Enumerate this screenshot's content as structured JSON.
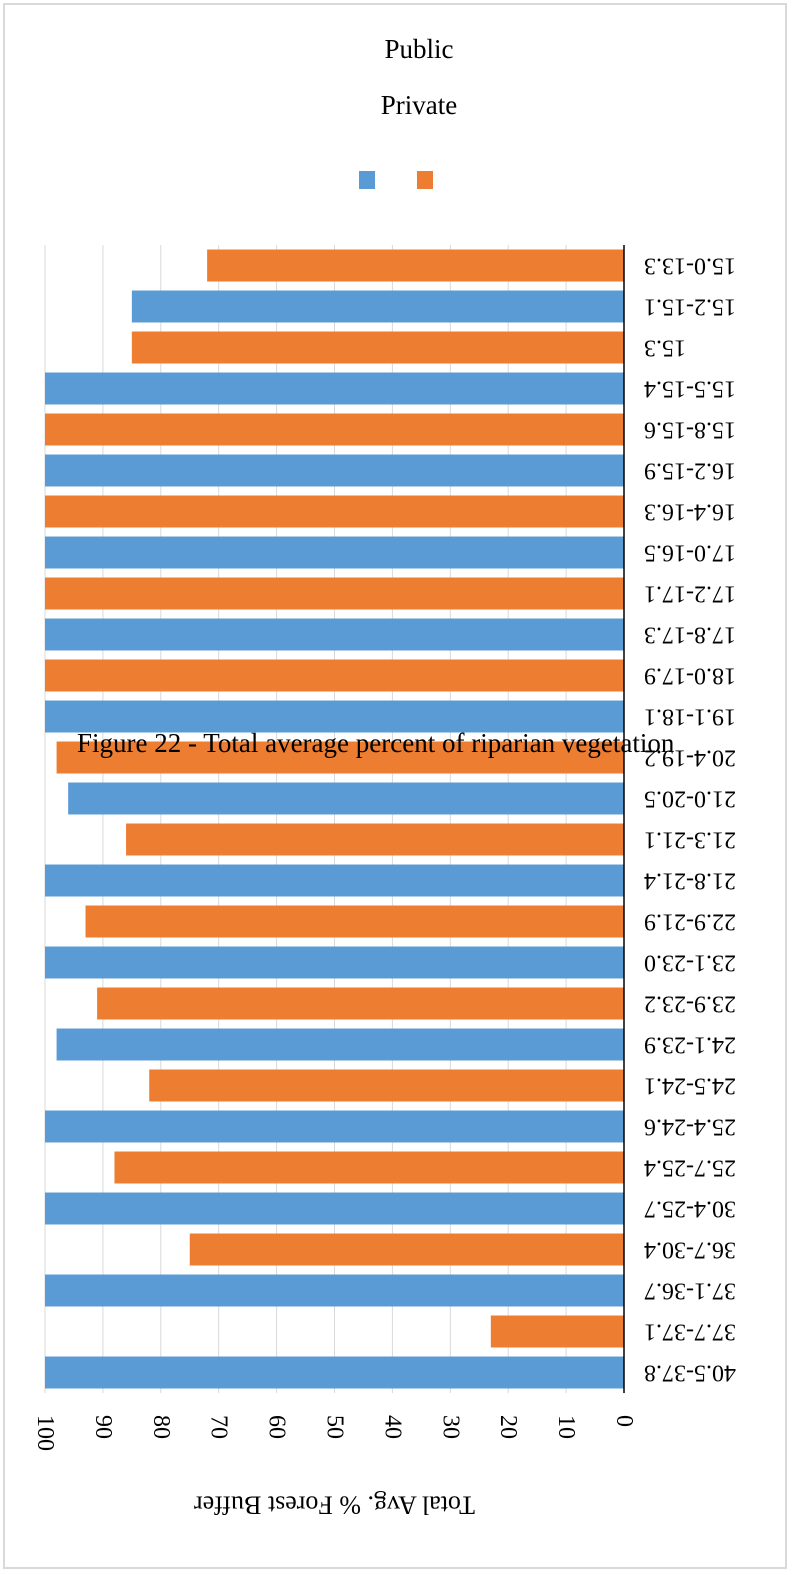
{
  "figure": {
    "caption": "Figure 22 - Total average percent of riparian vegetation"
  },
  "legend": {
    "items": [
      {
        "name": "Public",
        "color": "#5b9bd5"
      },
      {
        "name": "Private",
        "color": "#ed7d31"
      }
    ]
  },
  "chart_data": {
    "type": "bar",
    "orientation": "horizontal",
    "rotated": "180deg",
    "xlabel": "Total Avg. % Forest Buffer",
    "xlim": [
      0,
      100
    ],
    "xticks": [
      "0",
      "10",
      "20",
      "30",
      "40",
      "50",
      "60",
      "70",
      "80",
      "90",
      "100"
    ],
    "grid": true,
    "categories": [
      "40.5-37.8",
      "37.7-37.1",
      "37.1-36.7",
      "36.7-30.4",
      "30.4-25.7",
      "25.7-25.4",
      "25.4-24.6",
      "24.5-24.1",
      "24.1-23.9",
      "23.9-23.2",
      "23.1-23.0",
      "22.9-21.9",
      "21.8-21.4",
      "21.3-21.1",
      "21.0-20.5",
      "20.4-19.2",
      "19.1-18.1",
      "18.0-17.9",
      "17.8-17.3",
      "17.2-17.1",
      "17.0-16.5",
      "16.4-16.3",
      "16.2-15.9",
      "15.8-15.6",
      "15.5-15.4",
      "15.3",
      "15.2-15.1",
      "15.0-13.3"
    ],
    "series": [
      {
        "name": "Public",
        "color": "#5b9bd5",
        "values": [
          100,
          null,
          100,
          null,
          100,
          null,
          100,
          null,
          98,
          null,
          100,
          null,
          100,
          null,
          96,
          null,
          100,
          null,
          100,
          null,
          100,
          null,
          100,
          null,
          100,
          null,
          85,
          null
        ]
      },
      {
        "name": "Private",
        "color": "#ed7d31",
        "values": [
          null,
          23,
          null,
          75,
          null,
          88,
          null,
          82,
          null,
          91,
          null,
          93,
          null,
          86,
          null,
          98,
          null,
          100,
          null,
          100,
          null,
          100,
          null,
          100,
          null,
          85,
          null,
          72
        ]
      }
    ]
  }
}
